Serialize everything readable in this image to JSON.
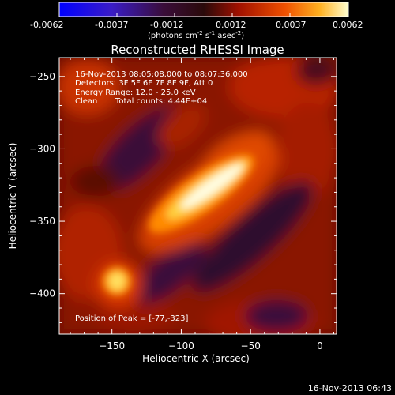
{
  "colorbar": {
    "tick_labels": [
      "-0.0062",
      "-0.0037",
      "-0.0012",
      "0.0012",
      "0.0037",
      "0.0062"
    ],
    "range": [
      -0.0062,
      0.0062
    ],
    "units_prefix": "(photons cm",
    "units_exp1": "-2",
    "units_mid": " s",
    "units_exp2": "-1",
    "units_mid2": " asec",
    "units_exp3": "-2",
    "units_suffix": ")"
  },
  "chart_data": {
    "type": "heatmap",
    "title": "Reconstructed RHESSI Image",
    "xlabel": "Heliocentric X (arcsec)",
    "ylabel": "Heliocentric Y (arcsec)",
    "xlim": [
      -188,
      12
    ],
    "ylim": [
      -428,
      -237
    ],
    "x_ticks": [
      -150,
      -100,
      -50,
      0
    ],
    "y_ticks": [
      -250,
      -300,
      -350,
      -400
    ],
    "x_tick_labels": [
      "−150",
      "−100",
      "−50",
      "0"
    ],
    "y_tick_labels": [
      "−250",
      "−300",
      "−350",
      "−400"
    ],
    "annotations": [
      "16-Nov-2013 08:05:08.000 to 08:07:36.000",
      "Detectors: 3F 5F 6F 7F 8F 9F, Att 0",
      "Energy Range: 12.0 - 25.0 keV",
      "Clean",
      "Total counts: 4.44E+04"
    ],
    "peak_label": "Position of Peak = [-77,-323]",
    "peak_position": [
      -77,
      -323
    ],
    "colormap": [
      "#0000ff",
      "#2a00aa",
      "#3a0a5a",
      "#1a0a1a",
      "#8a0000",
      "#e03000",
      "#ff9000",
      "#ffff80",
      "#ffffff"
    ]
  },
  "footer": {
    "date": "16-Nov-2013 06:43"
  }
}
